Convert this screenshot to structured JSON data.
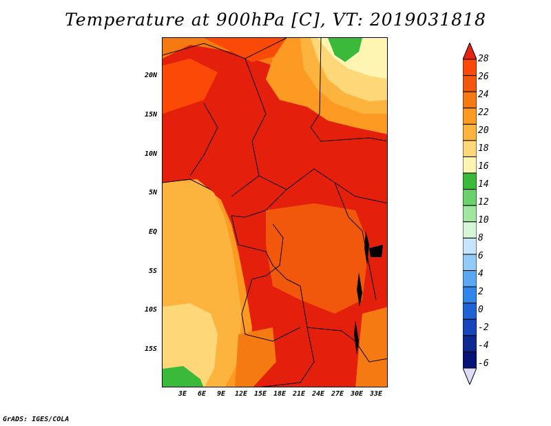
{
  "title": "Temperature at 900hPa [C], VT: 2019031818",
  "credit": "GrADS: IGES/COLA",
  "map": {
    "lat_labels": [
      "20N",
      "15N",
      "10N",
      "5N",
      "EQ",
      "5S",
      "10S",
      "15S"
    ],
    "lon_labels": [
      "3E",
      "6E",
      "9E",
      "12E",
      "15E",
      "18E",
      "21E",
      "24E",
      "27E",
      "30E",
      "33E"
    ]
  },
  "colorbar": {
    "levels": [
      "28",
      "26",
      "24",
      "22",
      "20",
      "18",
      "16",
      "14",
      "12",
      "10",
      "8",
      "6",
      "4",
      "2",
      "0",
      "-2",
      "-4",
      "-6"
    ],
    "colors": [
      "#fb4a07",
      "#f2580c",
      "#f57a12",
      "#fc9a22",
      "#fdb43e",
      "#fdd778",
      "#fef5b2",
      "#3ab93a",
      "#6bd26b",
      "#9fe69f",
      "#d5f7d5",
      "#c6e4fb",
      "#93cbf8",
      "#5aa8f3",
      "#2f86ea",
      "#1e62d6",
      "#1745bb",
      "#0c2992",
      "#08137a"
    ],
    "max_arrow_color": "#e52310",
    "min_arrow_color": "#dcdcf5"
  }
}
